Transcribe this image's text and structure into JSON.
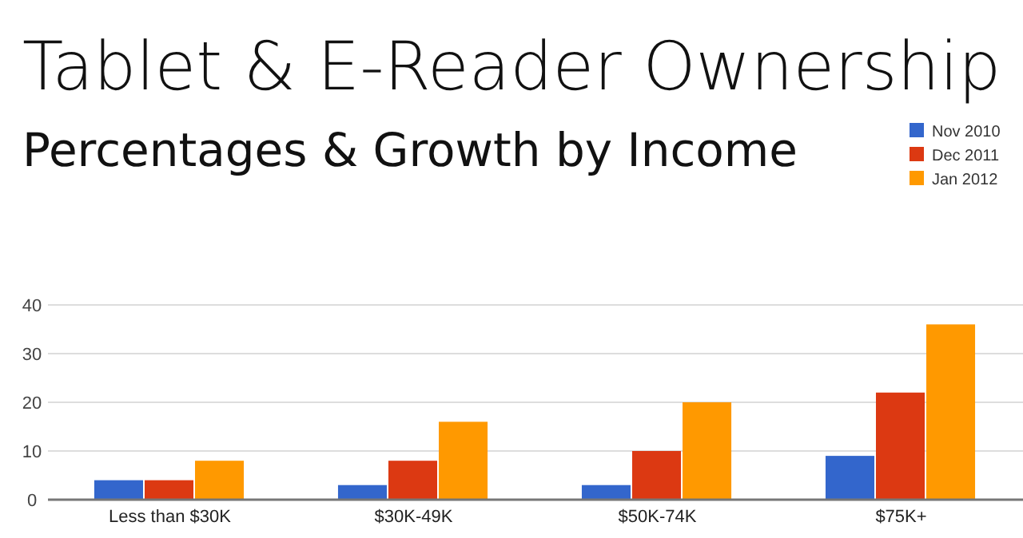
{
  "chart_data": {
    "type": "bar",
    "title": "Tablet & E-Reader Ownership",
    "subtitle": "Percentages & Growth by Income",
    "categories": [
      "Less than $30K",
      "$30K-49K",
      "$50K-74K",
      "$75K+"
    ],
    "series": [
      {
        "name": "Nov 2010",
        "color": "#3366cc",
        "values": [
          4,
          3,
          3,
          9
        ]
      },
      {
        "name": "Dec 2011",
        "color": "#dc3912",
        "values": [
          4,
          8,
          10,
          22
        ]
      },
      {
        "name": "Jan 2012",
        "color": "#ff9900",
        "values": [
          8,
          16,
          20,
          36
        ]
      }
    ],
    "ylim": [
      0,
      40
    ],
    "yticks": [
      0,
      10,
      20,
      30,
      40
    ],
    "grid": "y",
    "legend": "top right"
  }
}
